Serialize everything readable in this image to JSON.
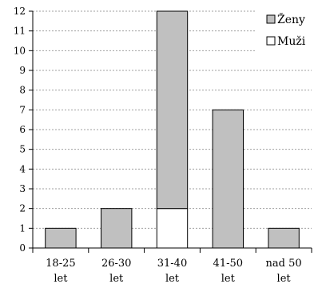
{
  "chart_data": {
    "type": "bar",
    "stacked": true,
    "categories": [
      [
        "18-25",
        "let"
      ],
      [
        "26-30",
        "let"
      ],
      [
        "31-40",
        "let"
      ],
      [
        "41-50",
        "let"
      ],
      [
        "nad 50",
        "let"
      ]
    ],
    "series": [
      {
        "name": "Muži",
        "color": "#ffffff",
        "values": [
          0,
          0,
          2,
          0,
          0
        ]
      },
      {
        "name": "Ženy",
        "color": "#c0c0c0",
        "values": [
          1,
          2,
          10,
          7,
          1
        ]
      }
    ],
    "ylim": [
      0,
      12
    ],
    "yticks": [
      0,
      1,
      2,
      3,
      4,
      5,
      6,
      7,
      8,
      9,
      10,
      11,
      12
    ],
    "grid": true,
    "legend": {
      "position": "top-right",
      "entries": [
        "Ženy",
        "Muži"
      ]
    }
  }
}
